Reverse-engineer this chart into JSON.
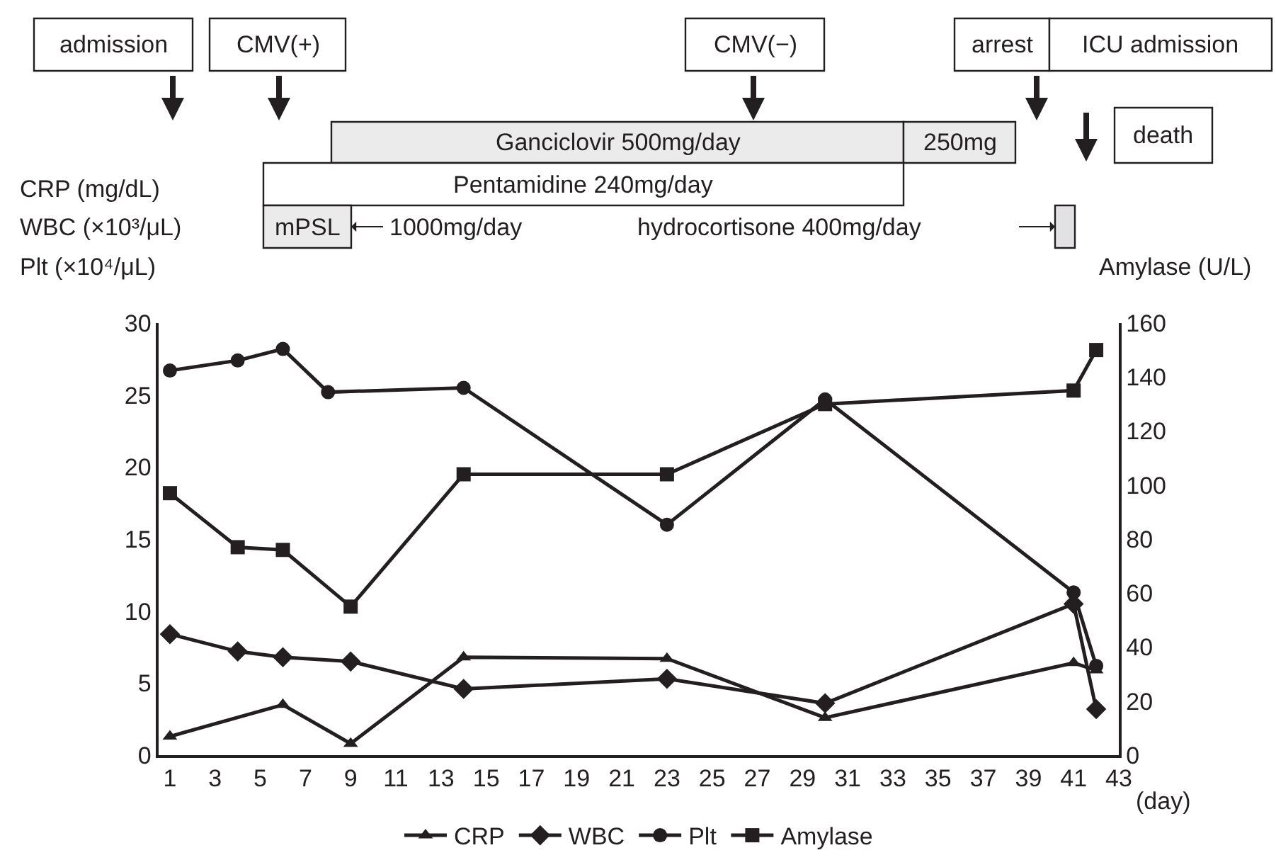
{
  "chart_data": {
    "type": "line",
    "xlabel": "(day)",
    "ylabel": "CRP (mg/dL)\nWBC (×10³/μL)\nPlt (×10⁴/μL)",
    "y2label": "Amylase (U/L)",
    "series": [
      {
        "name": "CRP",
        "color": "#231f20",
        "marker": "triangle",
        "x": [
          1,
          6,
          9,
          14,
          23,
          30,
          41,
          42
        ],
        "values": [
          1.3,
          3.5,
          0.8,
          6.8,
          6.7,
          2.6,
          6.4,
          5.9
        ]
      },
      {
        "name": "WBC",
        "color": "#231f20",
        "marker": "diamond",
        "x": [
          1,
          4,
          6,
          9,
          14,
          23,
          30,
          41,
          42
        ],
        "values": [
          8.4,
          7.2,
          6.8,
          6.5,
          4.6,
          5.3,
          3.6,
          10.5,
          3.2
        ]
      },
      {
        "name": "Plt",
        "color": "#231f20",
        "marker": "circle",
        "x": [
          1,
          4,
          6,
          8,
          14,
          23,
          30,
          41,
          42
        ],
        "values": [
          26.7,
          27.4,
          28.2,
          25.2,
          25.5,
          16.0,
          24.7,
          11.3,
          6.2
        ]
      },
      {
        "name": "Amylase",
        "color": "#231f20",
        "marker": "square",
        "axis": "y2",
        "x": [
          1,
          4,
          6,
          9,
          14,
          23,
          30,
          41,
          42
        ],
        "values": [
          97,
          77,
          76,
          55,
          104,
          104,
          130,
          135,
          150
        ]
      }
    ],
    "xlim": [
      0.5,
      43
    ],
    "xticks": [
      1,
      3,
      5,
      7,
      9,
      11,
      13,
      15,
      17,
      19,
      21,
      23,
      25,
      27,
      29,
      31,
      33,
      35,
      37,
      39,
      41,
      43
    ],
    "ylim": [
      0,
      30
    ],
    "yticks": [
      0,
      5,
      10,
      15,
      20,
      25,
      30
    ],
    "y2lim": [
      0,
      160
    ],
    "y2ticks": [
      0,
      20,
      40,
      60,
      80,
      100,
      120,
      140,
      160
    ],
    "legend": "bottom",
    "line_style": "solid",
    "annotations": [
      "admission",
      "CMV(+)",
      "CMV(−)",
      "arrest",
      "ICU admission",
      "death",
      "Ganciclovir 500mg/day",
      "250mg",
      "Pentamidine 240mg/day",
      "mPSL",
      "1000mg/day",
      "hydrocortisone 400mg/day"
    ]
  }
}
